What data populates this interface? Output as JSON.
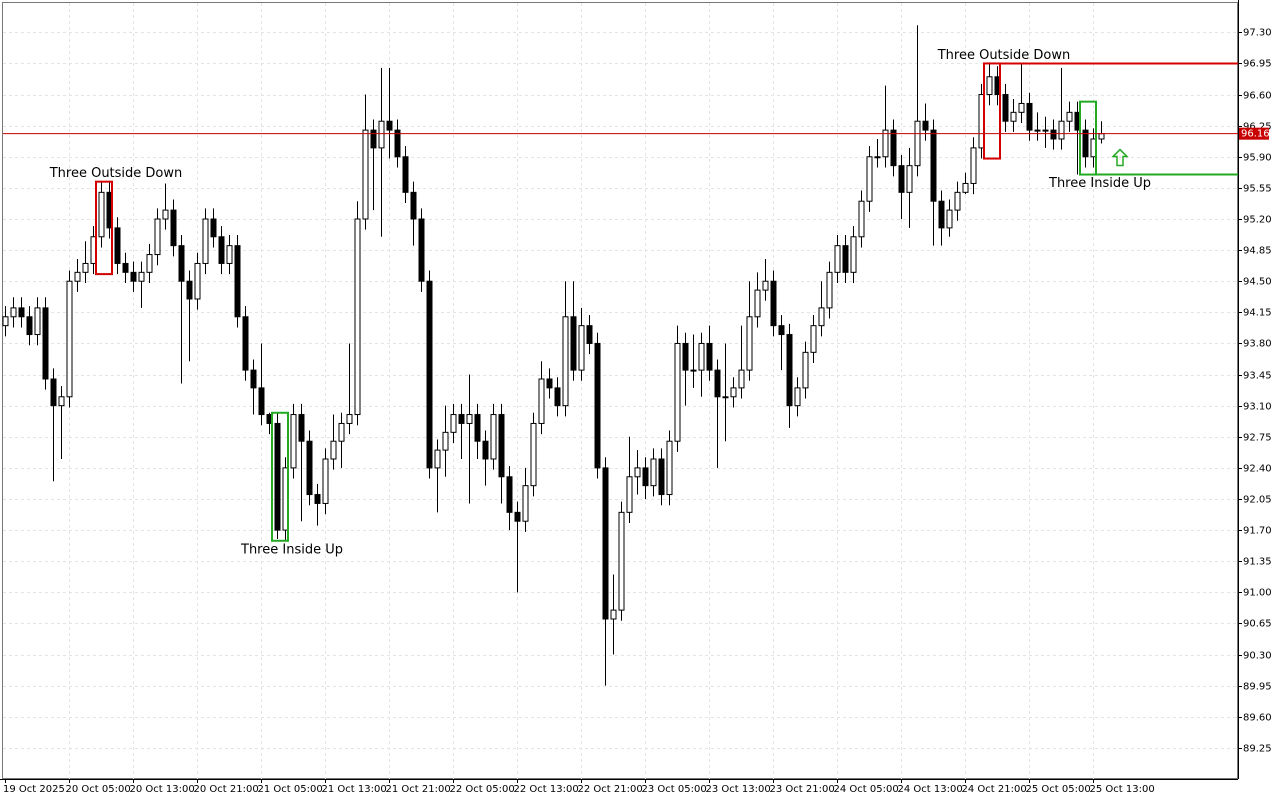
{
  "chart_data": {
    "type": "candlestick",
    "categories": [
      "19 Oct 2025",
      null,
      null,
      null,
      null,
      null,
      null,
      null,
      "20 Oct 05:00",
      null,
      null,
      null,
      null,
      null,
      null,
      null,
      "20 Oct 13:00",
      null,
      null,
      null,
      null,
      null,
      null,
      null,
      "20 Oct 21:00",
      null,
      null,
      null,
      null,
      null,
      null,
      null,
      "21 Oct 05:00",
      null,
      null,
      null,
      null,
      null,
      null,
      null,
      "21 Oct 13:00",
      null,
      null,
      null,
      null,
      null,
      null,
      null,
      "21 Oct 21:00",
      null,
      null,
      null,
      null,
      null,
      null,
      null,
      "22 Oct 05:00",
      null,
      null,
      null,
      null,
      null,
      null,
      null,
      "22 Oct 13:00",
      null,
      null,
      null,
      null,
      null,
      null,
      null,
      "22 Oct 21:00",
      null,
      null,
      null,
      null,
      null,
      null,
      null,
      "23 Oct 05:00",
      null,
      null,
      null,
      null,
      null,
      null,
      null,
      "23 Oct 13:00",
      null,
      null,
      null,
      null,
      null,
      null,
      null,
      "23 Oct 21:00",
      null,
      null,
      null,
      null,
      null,
      null,
      null,
      "24 Oct 05:00",
      null,
      null,
      null,
      null,
      null,
      null,
      null,
      "24 Oct 13:00",
      null,
      null,
      null,
      null,
      null,
      null,
      null,
      "24 Oct 21:00",
      null,
      null,
      null,
      null,
      null,
      null,
      null,
      "25 Oct 05:00",
      null,
      null,
      null,
      null,
      null,
      null,
      null,
      "25 Oct 13:00",
      null
    ],
    "open": [
      94.0,
      94.1,
      94.2,
      94.1,
      93.9,
      94.2,
      93.4,
      93.1,
      93.2,
      94.5,
      94.6,
      94.7,
      95.0,
      95.5,
      95.1,
      94.7,
      94.6,
      94.5,
      94.6,
      94.8,
      95.2,
      95.3,
      94.9,
      94.5,
      94.3,
      94.7,
      95.2,
      95.0,
      94.7,
      94.9,
      94.1,
      93.5,
      93.3,
      93.0,
      92.9,
      91.7,
      92.4,
      93.0,
      92.7,
      92.1,
      92.0,
      92.5,
      92.7,
      92.9,
      93.0,
      95.2,
      96.2,
      96.0,
      96.3,
      96.2,
      95.9,
      95.5,
      95.2,
      94.5,
      92.4,
      92.6,
      92.8,
      93.0,
      92.9,
      93.0,
      92.7,
      92.5,
      93.0,
      92.3,
      91.9,
      91.8,
      92.2,
      92.9,
      93.4,
      93.3,
      93.1,
      94.1,
      93.5,
      94.0,
      93.8,
      92.4,
      90.7,
      90.8,
      91.9,
      92.3,
      92.4,
      92.2,
      92.5,
      92.1,
      92.7,
      93.8,
      93.5,
      93.5,
      93.8,
      93.5,
      93.2,
      93.2,
      93.3,
      93.5,
      94.1,
      94.4,
      94.5,
      94.0,
      93.9,
      93.1,
      93.3,
      93.7,
      94.0,
      94.2,
      94.6,
      94.9,
      94.6,
      95.0,
      95.4,
      95.9,
      95.9,
      96.2,
      95.8,
      95.5,
      95.8,
      96.3,
      96.2,
      95.4,
      95.1,
      95.3,
      95.5,
      95.6,
      96.0,
      96.6,
      96.8,
      96.6,
      96.3,
      96.4,
      96.5,
      96.2,
      96.2,
      96.2,
      96.1,
      96.3,
      96.4,
      96.2,
      95.9,
      96.1
    ],
    "high": [
      94.22,
      94.32,
      94.32,
      94.22,
      94.32,
      94.32,
      93.52,
      93.32,
      94.62,
      94.75,
      94.95,
      95.12,
      95.62,
      95.62,
      95.22,
      94.82,
      94.72,
      94.72,
      94.92,
      95.32,
      95.6,
      95.42,
      95.02,
      94.62,
      94.82,
      95.32,
      95.32,
      95.12,
      95.02,
      95.02,
      94.22,
      93.62,
      93.8,
      93.02,
      93.02,
      92.52,
      93.12,
      93.12,
      92.82,
      92.22,
      92.62,
      93.0,
      93.02,
      93.8,
      95.4,
      96.6,
      96.32,
      96.9,
      96.9,
      96.32,
      96.02,
      95.62,
      95.32,
      94.62,
      92.72,
      93.1,
      93.12,
      93.12,
      93.45,
      93.12,
      92.82,
      93.12,
      93.12,
      92.42,
      92.02,
      92.4,
      93.02,
      93.6,
      93.52,
      93.42,
      94.5,
      94.5,
      94.2,
      94.12,
      93.92,
      92.52,
      91.2,
      92.02,
      92.75,
      92.6,
      92.52,
      92.62,
      92.62,
      92.82,
      94.0,
      93.92,
      93.9,
      93.92,
      94.0,
      93.62,
      93.8,
      93.42,
      94.0,
      94.5,
      94.6,
      94.75,
      94.62,
      94.12,
      94.02,
      93.42,
      93.82,
      94.12,
      94.5,
      94.72,
      95.02,
      95.02,
      95.12,
      95.52,
      96.02,
      96.1,
      96.7,
      96.32,
      95.92,
      96.0,
      97.38,
      96.5,
      96.32,
      95.52,
      95.42,
      95.62,
      95.72,
      96.12,
      96.72,
      96.95,
      96.92,
      96.72,
      96.55,
      96.95,
      96.62,
      96.4,
      96.35,
      96.32,
      96.9,
      96.52,
      96.52,
      96.32,
      96.22,
      96.3
    ],
    "low": [
      93.88,
      93.98,
      93.98,
      93.78,
      93.78,
      93.28,
      92.25,
      92.5,
      93.08,
      94.38,
      94.48,
      94.58,
      94.88,
      94.98,
      94.58,
      94.48,
      94.38,
      94.2,
      94.48,
      94.68,
      95.08,
      94.78,
      93.35,
      93.6,
      94.18,
      94.58,
      94.88,
      94.58,
      94.58,
      93.98,
      93.38,
      93.0,
      92.88,
      92.78,
      91.6,
      91.58,
      92.28,
      91.8,
      91.98,
      91.75,
      91.88,
      92.38,
      92.4,
      92.78,
      92.88,
      95.08,
      95.3,
      95.0,
      95.88,
      95.78,
      95.38,
      94.9,
      94.38,
      92.28,
      91.9,
      92.3,
      92.68,
      92.5,
      92.0,
      92.5,
      92.2,
      92.38,
      92.0,
      91.7,
      91.0,
      91.68,
      92.08,
      92.78,
      93.18,
      92.98,
      92.98,
      93.38,
      93.38,
      93.68,
      92.28,
      89.95,
      90.3,
      90.68,
      91.78,
      92.1,
      92.05,
      92.08,
      91.98,
      91.98,
      92.58,
      93.1,
      93.3,
      93.2,
      93.38,
      92.4,
      92.7,
      93.08,
      93.18,
      93.38,
      93.98,
      94.28,
      93.88,
      93.5,
      92.85,
      92.98,
      93.18,
      93.58,
      93.88,
      94.08,
      94.48,
      94.48,
      94.48,
      94.88,
      95.28,
      95.78,
      95.78,
      95.68,
      95.2,
      95.1,
      95.68,
      96.08,
      94.9,
      94.9,
      95.0,
      95.18,
      95.48,
      95.48,
      95.88,
      96.48,
      96.48,
      96.18,
      96.18,
      96.28,
      96.08,
      96.08,
      96.0,
      95.98,
      95.98,
      96.18,
      95.7,
      95.78,
      95.78,
      96.05
    ],
    "close": [
      94.1,
      94.2,
      94.1,
      93.9,
      94.2,
      93.4,
      93.1,
      93.2,
      94.5,
      94.6,
      94.7,
      95.0,
      95.5,
      95.1,
      94.7,
      94.6,
      94.5,
      94.6,
      94.8,
      95.2,
      95.3,
      94.9,
      94.5,
      94.3,
      94.7,
      95.2,
      95.0,
      94.7,
      94.9,
      94.1,
      93.5,
      93.3,
      93.0,
      92.9,
      91.7,
      92.4,
      93.0,
      92.7,
      92.1,
      92.0,
      92.5,
      92.7,
      92.9,
      93.0,
      95.2,
      96.2,
      96.0,
      96.3,
      96.2,
      95.9,
      95.5,
      95.2,
      94.5,
      92.4,
      92.6,
      92.8,
      93.0,
      92.9,
      93.0,
      92.7,
      92.5,
      93.0,
      92.3,
      91.9,
      91.8,
      92.2,
      92.9,
      93.4,
      93.3,
      93.1,
      94.1,
      93.5,
      94.0,
      93.8,
      92.4,
      90.7,
      90.8,
      91.9,
      92.3,
      92.4,
      92.2,
      92.5,
      92.1,
      92.7,
      93.8,
      93.5,
      93.5,
      93.8,
      93.5,
      93.2,
      93.2,
      93.3,
      93.5,
      94.1,
      94.4,
      94.5,
      94.0,
      93.9,
      93.1,
      93.3,
      93.7,
      94.0,
      94.2,
      94.6,
      94.9,
      94.6,
      95.0,
      95.4,
      95.9,
      95.9,
      96.2,
      95.8,
      95.5,
      95.8,
      96.3,
      96.2,
      95.4,
      95.1,
      95.3,
      95.5,
      95.6,
      96.0,
      96.6,
      96.8,
      96.6,
      96.3,
      96.4,
      96.5,
      96.2,
      96.2,
      96.2,
      96.1,
      96.3,
      96.4,
      96.2,
      95.9,
      96.1,
      96.16
    ],
    "up_color": "#ffffff",
    "down_color": "#000000",
    "ylim": [
      88.9,
      97.63
    ],
    "yticks": [
      89.25,
      {
        "value": 89.6,
        "label": "89.60"
      },
      89.95,
      {
        "value": 90.3,
        "label": "90.30"
      },
      90.65,
      {
        "value": 91,
        "label": "91.00"
      },
      91.35,
      {
        "value": 91.7,
        "label": "91.70"
      },
      92.05,
      {
        "value": 92.4,
        "label": "92.40"
      },
      92.75,
      {
        "value": 93.1,
        "label": "93.10"
      },
      93.45,
      {
        "value": 93.8,
        "label": "93.80"
      },
      94.15,
      {
        "value": 94.5,
        "label": "94.50"
      },
      94.85,
      {
        "value": 95.2,
        "label": "95.20"
      },
      95.55,
      {
        "value": 95.9,
        "label": "95.90"
      },
      96.25,
      {
        "value": 96.6,
        "label": "96.60"
      },
      96.95,
      {
        "value": 97.3,
        "label": "97.30"
      }
    ],
    "grid": true,
    "current_price": 96.16,
    "current_price_color": "#c80000",
    "patterns": [
      {
        "name": "Three Outside Down",
        "color": "#d40000",
        "start": 11,
        "end": 13,
        "direction": "down",
        "extend": false
      },
      {
        "name": "Three Inside Up",
        "color": "#22aa22",
        "start": 33,
        "end": 35,
        "direction": "up",
        "extend": false
      },
      {
        "name": "Three Outside Down",
        "color": "#d40000",
        "start": 122,
        "end": 124,
        "direction": "down",
        "extend": true
      },
      {
        "name": "Three Inside Up",
        "color": "#22aa22",
        "start": 134,
        "end": 136,
        "direction": "up",
        "extend": true,
        "arrow": true
      }
    ]
  }
}
